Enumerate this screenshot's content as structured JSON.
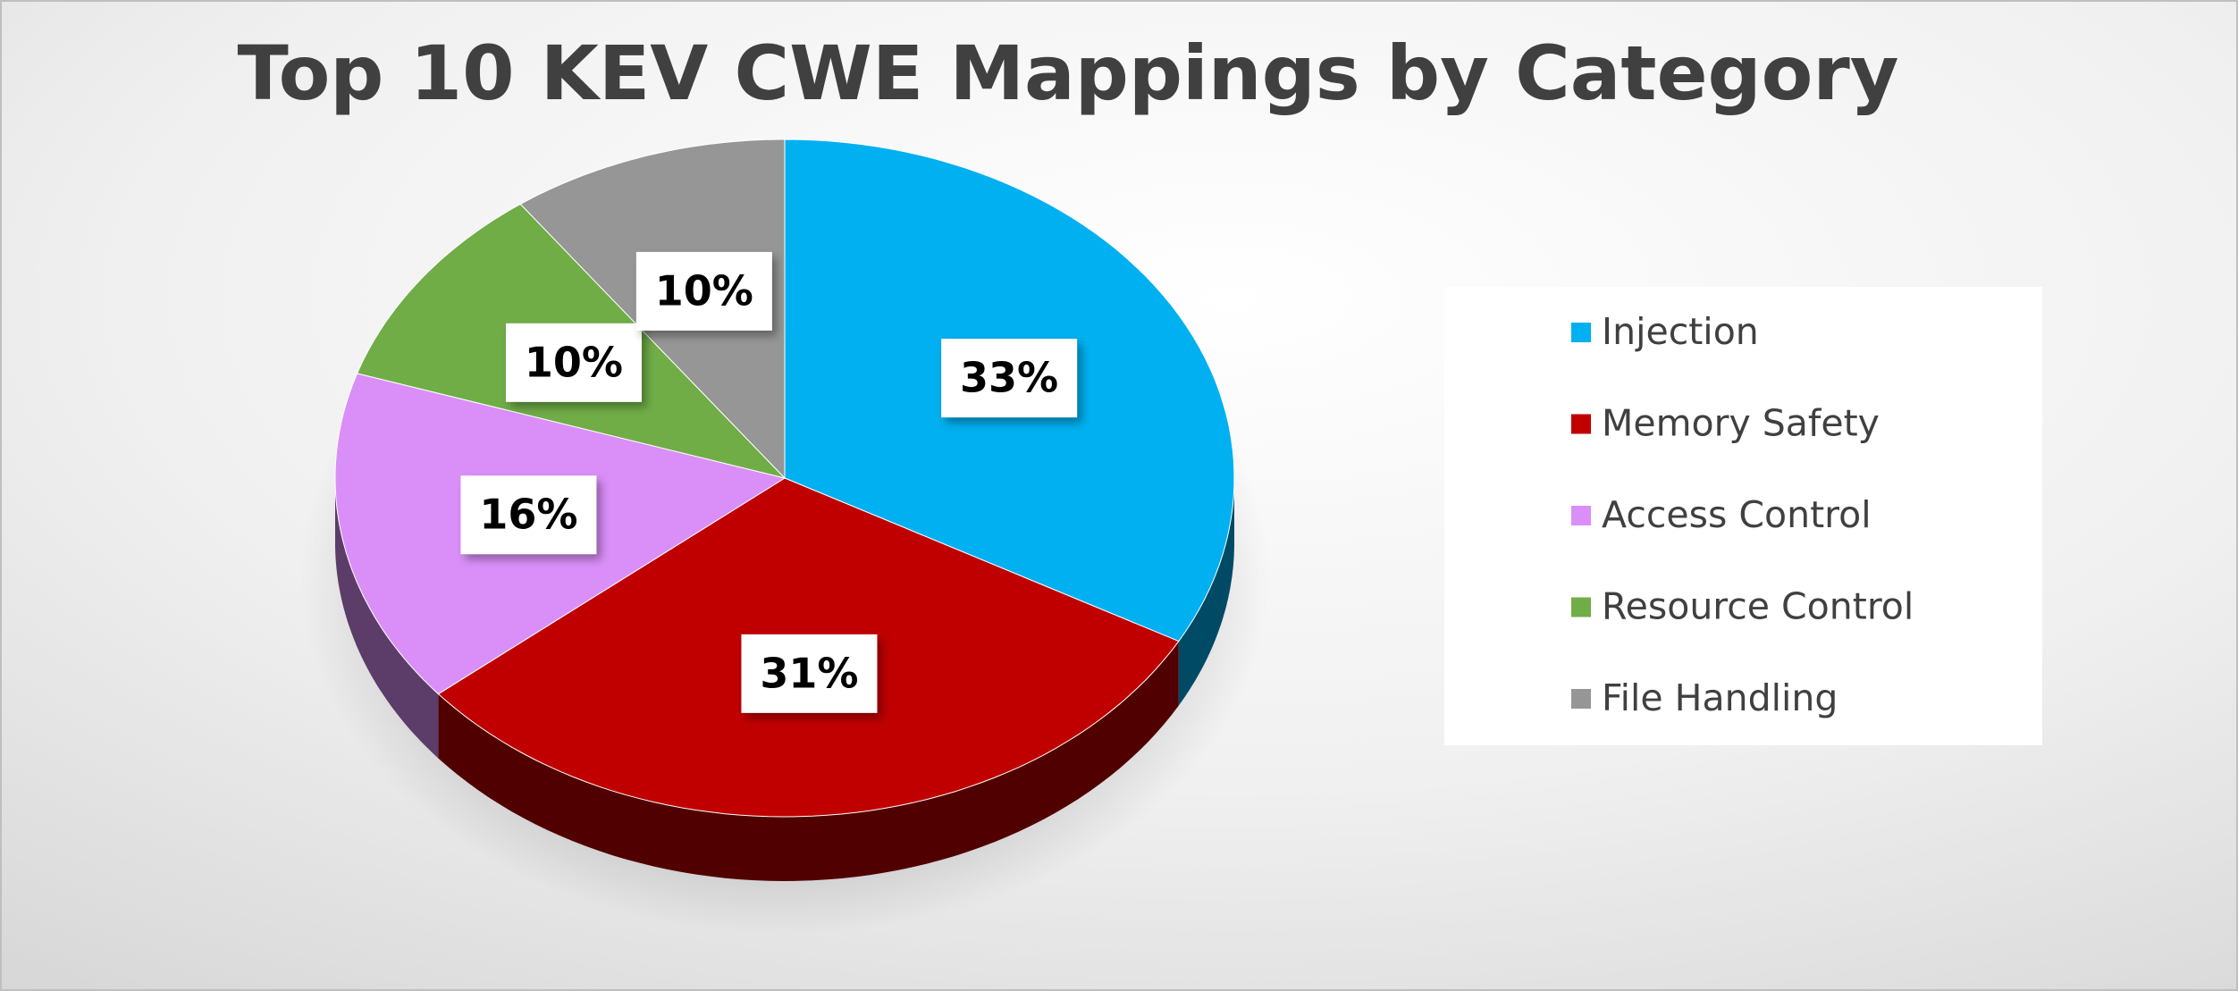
{
  "chart_data": {
    "type": "pie",
    "title": "Top 10 KEV CWE Mappings by Category",
    "categories": [
      "Injection",
      "Memory Safety",
      "Access Control",
      "Resource Control",
      "File Handling"
    ],
    "values": [
      33,
      31,
      16,
      10,
      10
    ],
    "value_labels": [
      "33%",
      "31%",
      "16%",
      "10%",
      "10%"
    ],
    "colors": [
      "#00b0f0",
      "#c00000",
      "#da8ff8",
      "#70ad47",
      "#969696"
    ],
    "legend": "right"
  }
}
